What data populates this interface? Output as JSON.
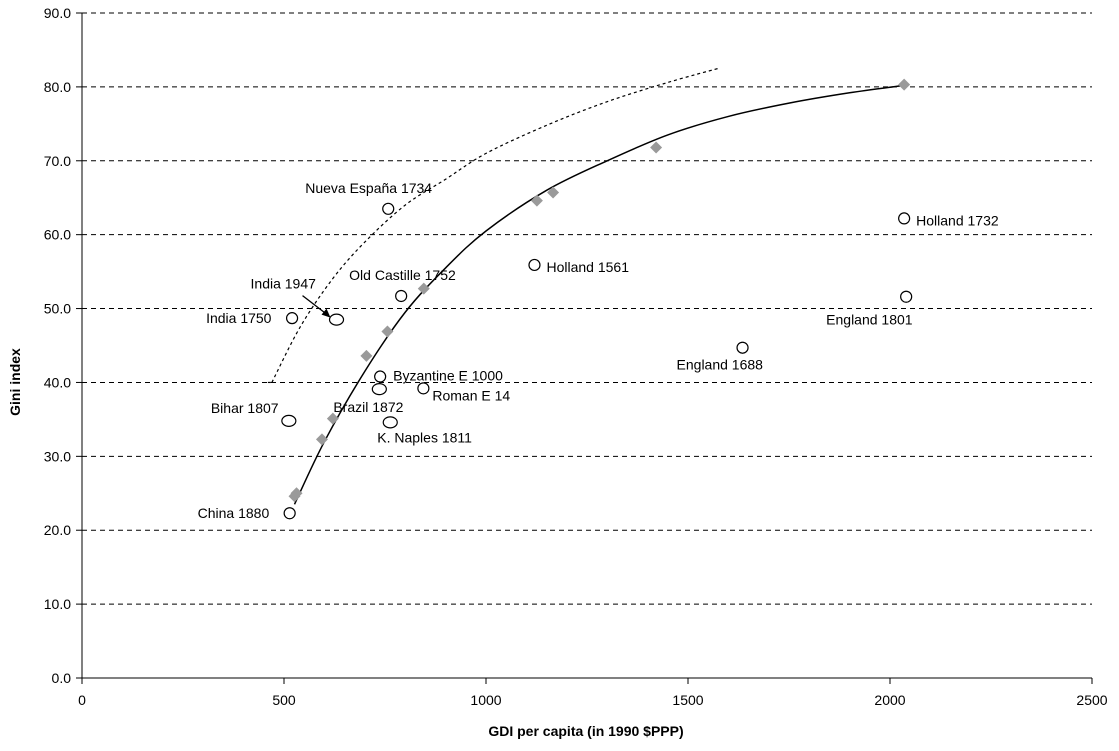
{
  "chart_data": {
    "type": "scatter",
    "xlabel": "GDI per capita (in 1990 $PPP)",
    "ylabel": "Gini index",
    "xlim": [
      0,
      2500
    ],
    "ylim": [
      0,
      90
    ],
    "x_ticks": [
      0,
      500,
      1000,
      1500,
      2000,
      2500
    ],
    "y_ticks": [
      "0.0",
      "10.0",
      "20.0",
      "30.0",
      "40.0",
      "50.0",
      "60.0",
      "70.0",
      "80.0",
      "90.0"
    ],
    "grid": "horizontal dashed",
    "colors": {
      "frontier_marker": "#9a9a9a",
      "line": "#000000",
      "grid": "#000000"
    },
    "observations": [
      {
        "label": "Nueva España 1734",
        "x": 758,
        "y": 63.5
      },
      {
        "label": "Holland  1732",
        "x": 2035,
        "y": 62.2
      },
      {
        "label": "Holland 1561",
        "x": 1120,
        "y": 55.9
      },
      {
        "label": "Old Castille 1752",
        "x": 790,
        "y": 51.7
      },
      {
        "label": "England 1801",
        "x": 2040,
        "y": 51.6
      },
      {
        "label": "India 1750",
        "x": 520,
        "y": 48.7
      },
      {
        "label": "India 1947",
        "x": 630,
        "y": 48.5
      },
      {
        "label": "England 1688",
        "x": 1635,
        "y": 44.7
      },
      {
        "label": "Byzantine E 1000",
        "x": 738,
        "y": 40.8
      },
      {
        "label": "Brazil 1872",
        "x": 736,
        "y": 39.1
      },
      {
        "label": "Roman E 14",
        "x": 845,
        "y": 39.2
      },
      {
        "label": "Bihar 1807",
        "x": 512,
        "y": 34.8
      },
      {
        "label": "K. Naples 1811",
        "x": 763,
        "y": 34.6
      },
      {
        "label": "China 1880",
        "x": 514,
        "y": 22.3
      }
    ],
    "frontier_points": [
      {
        "x": 526,
        "y": 24.6
      },
      {
        "x": 531,
        "y": 25.0
      },
      {
        "x": 594,
        "y": 32.3
      },
      {
        "x": 621,
        "y": 35.1
      },
      {
        "x": 704,
        "y": 43.6
      },
      {
        "x": 756,
        "y": 46.9
      },
      {
        "x": 846,
        "y": 52.7
      },
      {
        "x": 1126,
        "y": 64.6
      },
      {
        "x": 1166,
        "y": 65.7
      },
      {
        "x": 1421,
        "y": 71.8
      },
      {
        "x": 2035,
        "y": 80.3
      }
    ],
    "frontier_curve": [
      {
        "x": 526,
        "y": 23.5
      },
      {
        "x": 600,
        "y": 32.0
      },
      {
        "x": 700,
        "y": 41.5
      },
      {
        "x": 800,
        "y": 49.5
      },
      {
        "x": 900,
        "y": 55.5
      },
      {
        "x": 1000,
        "y": 60.5
      },
      {
        "x": 1150,
        "y": 66.0
      },
      {
        "x": 1300,
        "y": 70.0
      },
      {
        "x": 1450,
        "y": 73.5
      },
      {
        "x": 1600,
        "y": 76.0
      },
      {
        "x": 1750,
        "y": 77.8
      },
      {
        "x": 1900,
        "y": 79.2
      },
      {
        "x": 2035,
        "y": 80.2
      }
    ],
    "dashed_curve": [
      {
        "x": 470,
        "y": 40.0
      },
      {
        "x": 540,
        "y": 47.5
      },
      {
        "x": 620,
        "y": 54.0
      },
      {
        "x": 700,
        "y": 59.0
      },
      {
        "x": 800,
        "y": 64.0
      },
      {
        "x": 900,
        "y": 67.5
      },
      {
        "x": 1000,
        "y": 71.0
      },
      {
        "x": 1150,
        "y": 74.8
      },
      {
        "x": 1300,
        "y": 78.0
      },
      {
        "x": 1450,
        "y": 80.6
      },
      {
        "x": 1575,
        "y": 82.5
      }
    ]
  }
}
